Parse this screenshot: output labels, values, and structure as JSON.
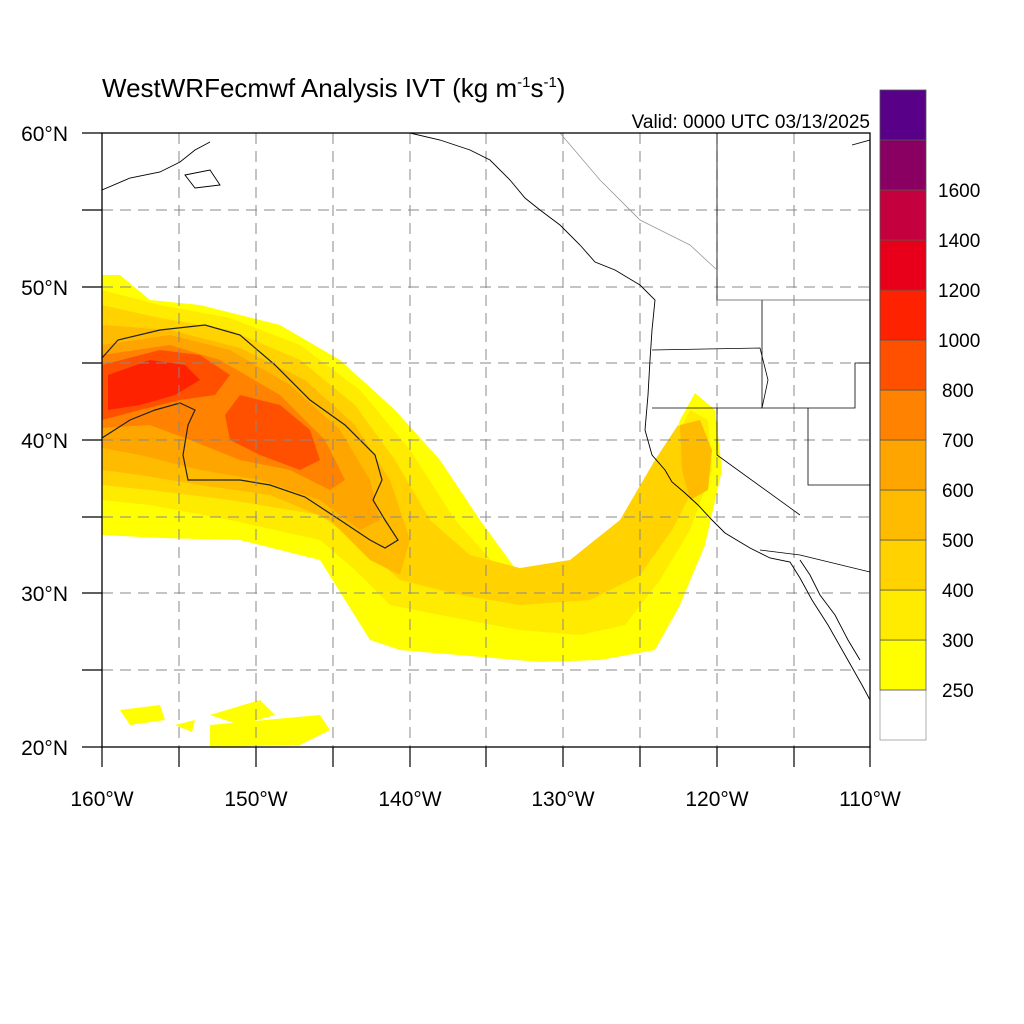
{
  "map": {
    "title": "WestWRFecmwf Analysis IVT (kg m",
    "title_sup1": "-1",
    "title_mid": "s",
    "title_sup2": "-1",
    "title_end": ")",
    "valid_time": "Valid: 0000 UTC 03/13/2025",
    "lon_labels": [
      "160°W",
      "150°W",
      "140°W",
      "130°W",
      "120°W",
      "110°W"
    ],
    "lat_labels": [
      "60°N",
      "50°N",
      "40°N",
      "30°N",
      "20°N"
    ],
    "lon_range": [
      -160,
      -110
    ],
    "lat_range": [
      20,
      60
    ],
    "grid": "dashed every 5°",
    "contour_line_value": 500,
    "colorbar": {
      "labels": [
        "250",
        "300",
        "400",
        "500",
        "600",
        "700",
        "800",
        "1000",
        "1200",
        "1400",
        "1600"
      ],
      "colors": [
        "#ffffff",
        "#ffff00",
        "#ffeb00",
        "#ffd200",
        "#ffbb00",
        "#ffa500",
        "#ff8200",
        "#ff5000",
        "#ff2200",
        "#e8001a",
        "#c4003e",
        "#8a0062",
        "#580088"
      ]
    }
  }
}
